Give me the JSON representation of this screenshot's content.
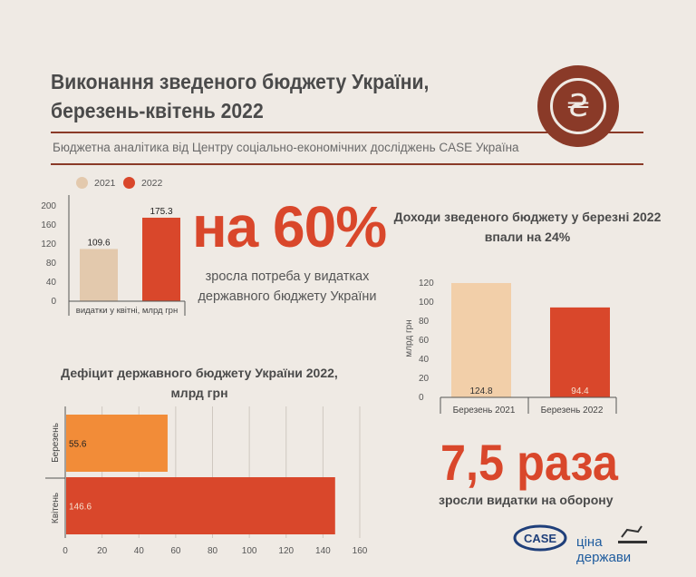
{
  "header": {
    "title_line1": "Виконання зведеного бюджету України,",
    "title_line2": "березень-квітень 2022",
    "subtitle": "Бюджетна аналітика від Центру соціально-економічних досліджень CASE Україна",
    "logo_symbol": "₴",
    "logo_icon": "hryvnia-icon"
  },
  "colors": {
    "accent": "#d9472b",
    "light": "#f2cfa9",
    "beige": "#e3c9ad",
    "orange": "#f28c38",
    "brand": "#8a3a28"
  },
  "legend": {
    "items": [
      "2021",
      "2022"
    ]
  },
  "stat60": {
    "value": "на 60%",
    "description": "зросла потреба у видатках державного бюджету України"
  },
  "stat75": {
    "value": "7,5 раза",
    "description": "зросли видатки на оборону"
  },
  "logos": {
    "case": "CASE",
    "cina1": "ціна",
    "cina2": "держави"
  },
  "chart_data": [
    {
      "type": "bar",
      "title": "",
      "categories": [
        "видатки у квітні, млрд грн"
      ],
      "series": [
        {
          "name": "2021",
          "values": [
            109.6
          ]
        },
        {
          "name": "2022",
          "values": [
            175.3
          ]
        }
      ],
      "ylim": [
        0,
        200
      ],
      "yticks": [
        0,
        40,
        80,
        120,
        160,
        200
      ],
      "legend_position": "top-left"
    },
    {
      "type": "bar",
      "title": "Доходи зведеного бюджету у березні 2022 впали на 24%",
      "categories": [
        "Березень 2021",
        "Березень 2022"
      ],
      "values": [
        124.8,
        94.4
      ],
      "ylabel": "млрд грн",
      "ylim": [
        0,
        120
      ],
      "yticks": [
        0,
        20,
        40,
        60,
        80,
        100,
        120
      ]
    },
    {
      "type": "bar",
      "orientation": "horizontal",
      "title": "Дефіцит державного бюджету України 2022, млрд грн",
      "categories": [
        "Березень",
        "Квітень"
      ],
      "values": [
        55.6,
        146.6
      ],
      "xlim": [
        0,
        160
      ],
      "xticks": [
        0,
        20,
        40,
        60,
        80,
        100,
        120,
        140,
        160
      ],
      "grid": true
    }
  ]
}
